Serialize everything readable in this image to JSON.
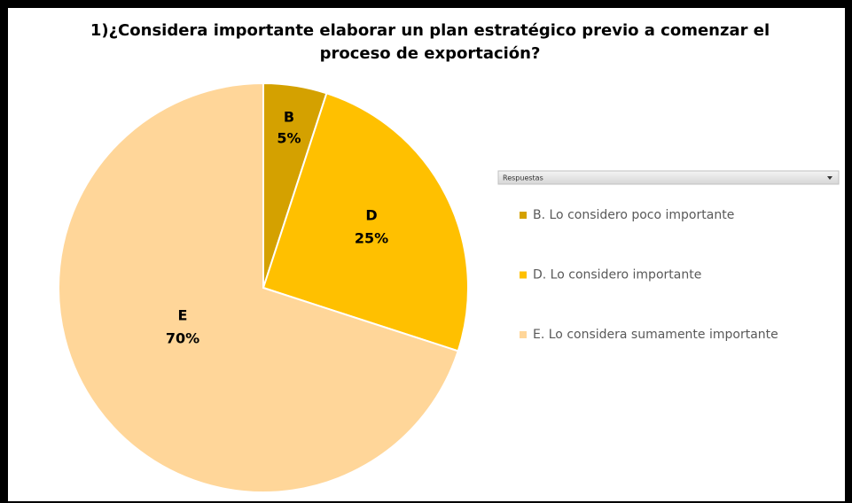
{
  "chart_data": {
    "type": "pie",
    "title": "1)¿Considera importante elaborar un plan estratégico previo a comenzar el proceso de exportación?",
    "categories": [
      "B. Lo considero poco importante",
      "D. Lo considero importante",
      "E. Lo considera sumamente importante"
    ],
    "slice_labels": [
      "B",
      "D",
      "E"
    ],
    "values": [
      5,
      25,
      70
    ],
    "value_labels": [
      "5%",
      "25%",
      "70%"
    ],
    "colors": [
      "#d4a100",
      "#ffc000",
      "#ffd699"
    ],
    "legend_title": "Respuestas",
    "legend": "right"
  }
}
